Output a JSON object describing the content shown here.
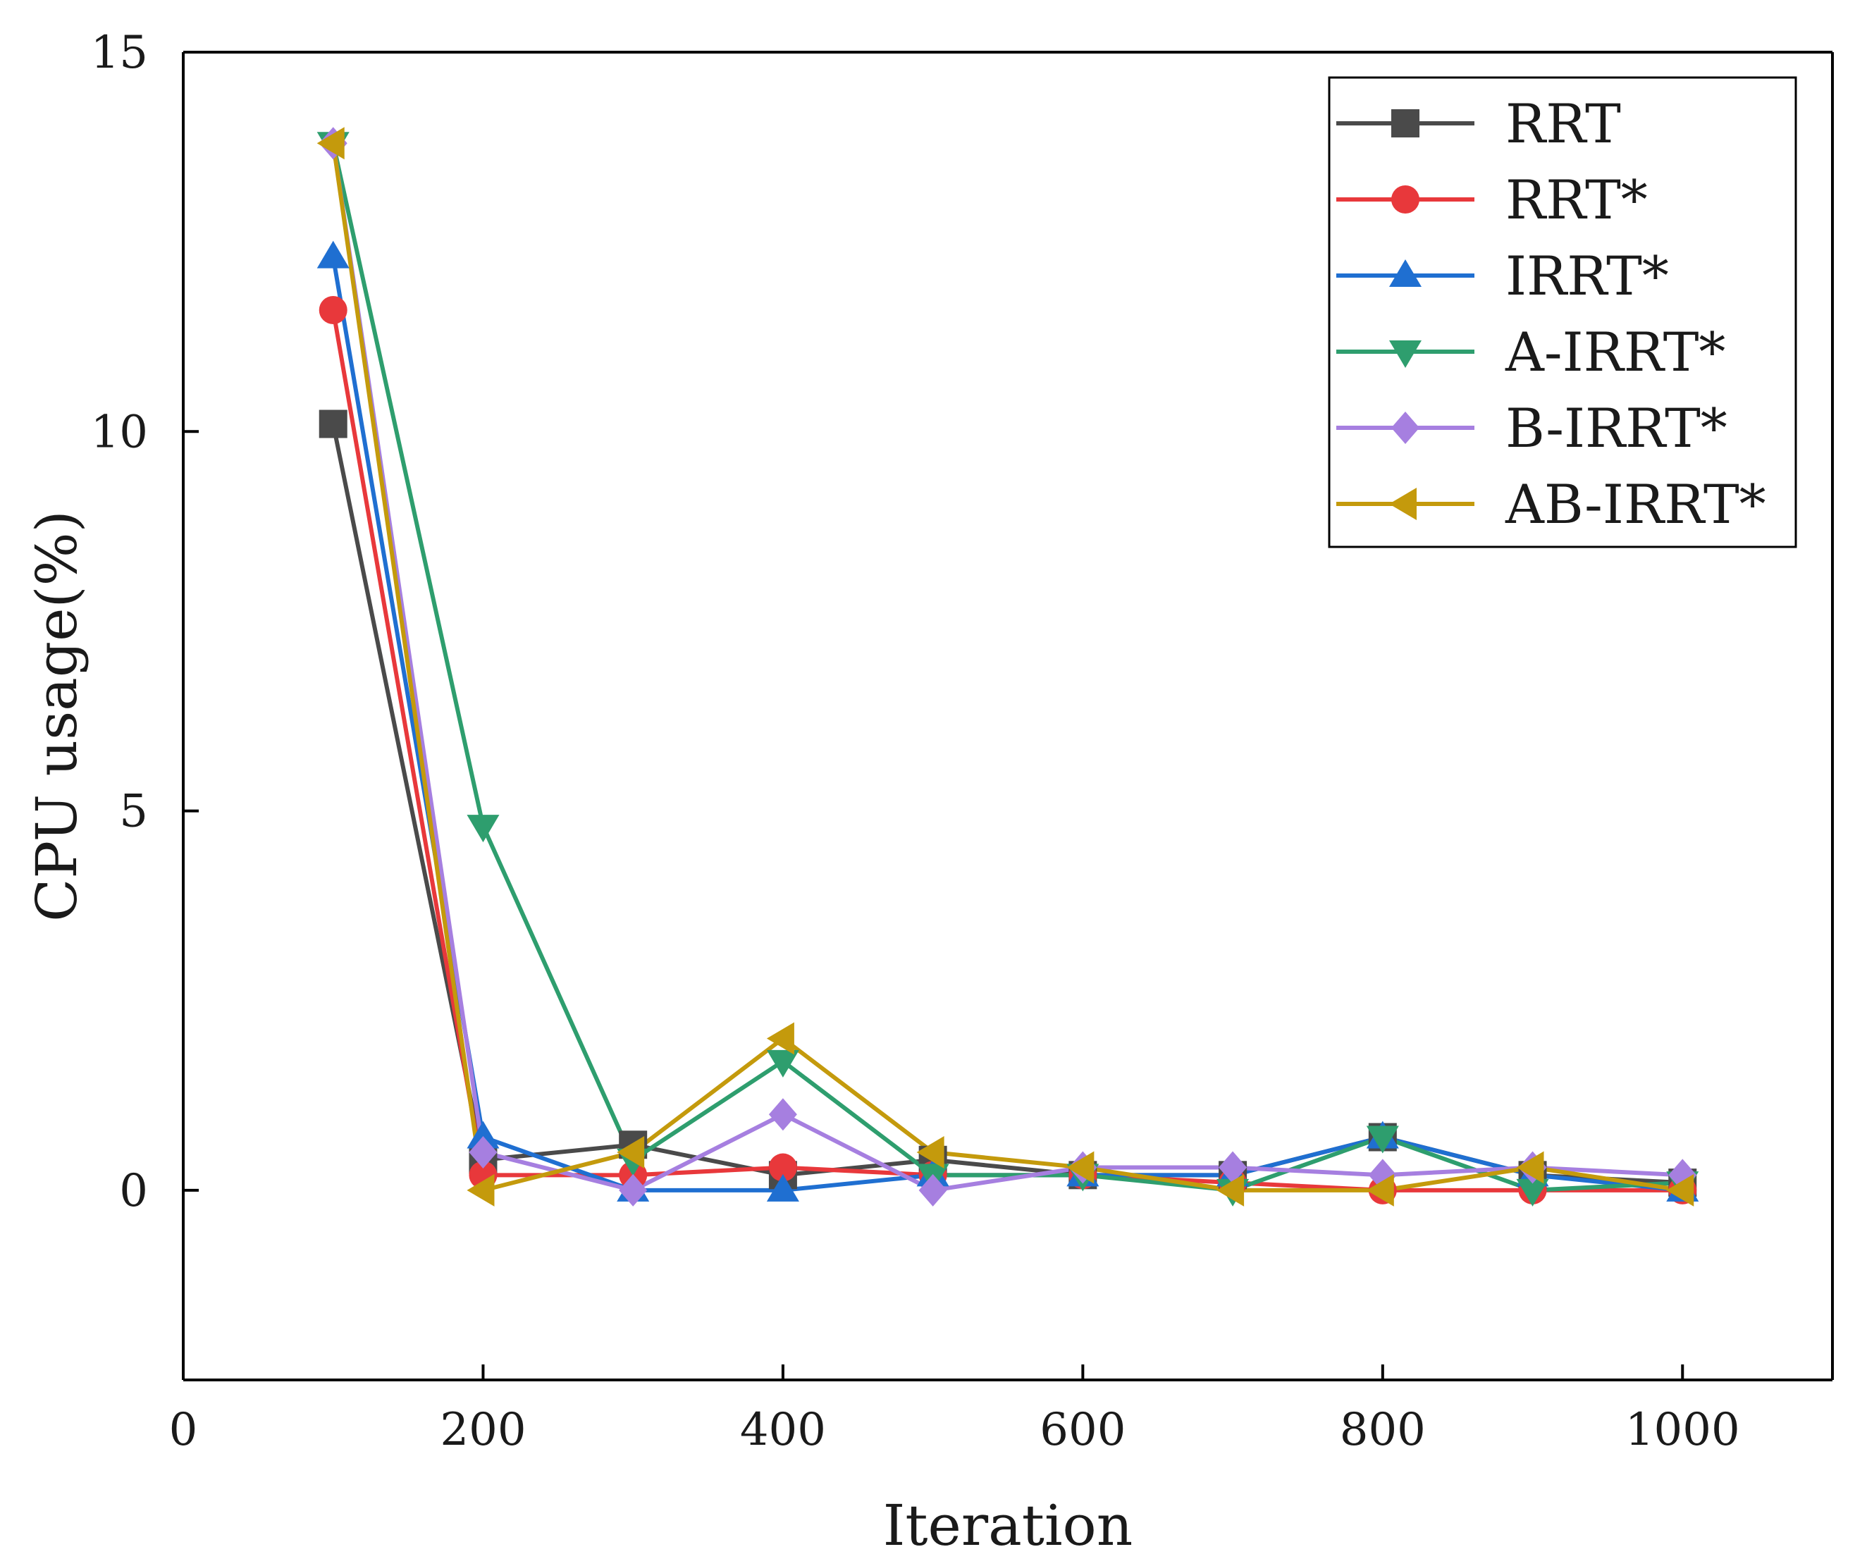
{
  "chart_data": {
    "type": "line",
    "title": "",
    "xlabel": "Iteration",
    "ylabel": "CPU usage(%)",
    "xlim": [
      0,
      1100
    ],
    "ylim": [
      -2.5,
      15
    ],
    "xticks": [
      0,
      200,
      400,
      600,
      800,
      1000
    ],
    "yticks": [
      0,
      5,
      10,
      15
    ],
    "legend_position": "top-right",
    "grid": false,
    "x": [
      100,
      200,
      300,
      400,
      500,
      600,
      700,
      800,
      900,
      1000
    ],
    "series": [
      {
        "name": "RRT",
        "color": "#4a4a4a",
        "marker": "square",
        "values": [
          10.1,
          0.4,
          0.6,
          0.2,
          0.4,
          0.2,
          0.2,
          0.7,
          0.2,
          0.1
        ]
      },
      {
        "name": "RRT*",
        "color": "#e8383b",
        "marker": "circle",
        "values": [
          11.6,
          0.2,
          0.2,
          0.3,
          0.2,
          0.2,
          0.1,
          0.0,
          0.0,
          0.0
        ]
      },
      {
        "name": "IRRT*",
        "color": "#1f6fd1",
        "marker": "triangle-up",
        "values": [
          12.3,
          0.7,
          0.0,
          0.0,
          0.2,
          0.2,
          0.2,
          0.7,
          0.2,
          0.0
        ]
      },
      {
        "name": "A-IRRT*",
        "color": "#2e9e6e",
        "marker": "triangle-down",
        "values": [
          13.8,
          4.8,
          0.4,
          1.7,
          0.2,
          0.2,
          0.0,
          0.7,
          0.0,
          0.1
        ]
      },
      {
        "name": "B-IRRT*",
        "color": "#a67fe0",
        "marker": "diamond",
        "values": [
          13.8,
          0.5,
          0.0,
          1.0,
          0.0,
          0.3,
          0.3,
          0.2,
          0.3,
          0.2
        ]
      },
      {
        "name": "AB-IRRT*",
        "color": "#c49a0c",
        "marker": "triangle-left",
        "values": [
          13.8,
          0.0,
          0.5,
          2.0,
          0.5,
          0.3,
          0.0,
          0.0,
          0.3,
          0.0
        ]
      }
    ]
  }
}
